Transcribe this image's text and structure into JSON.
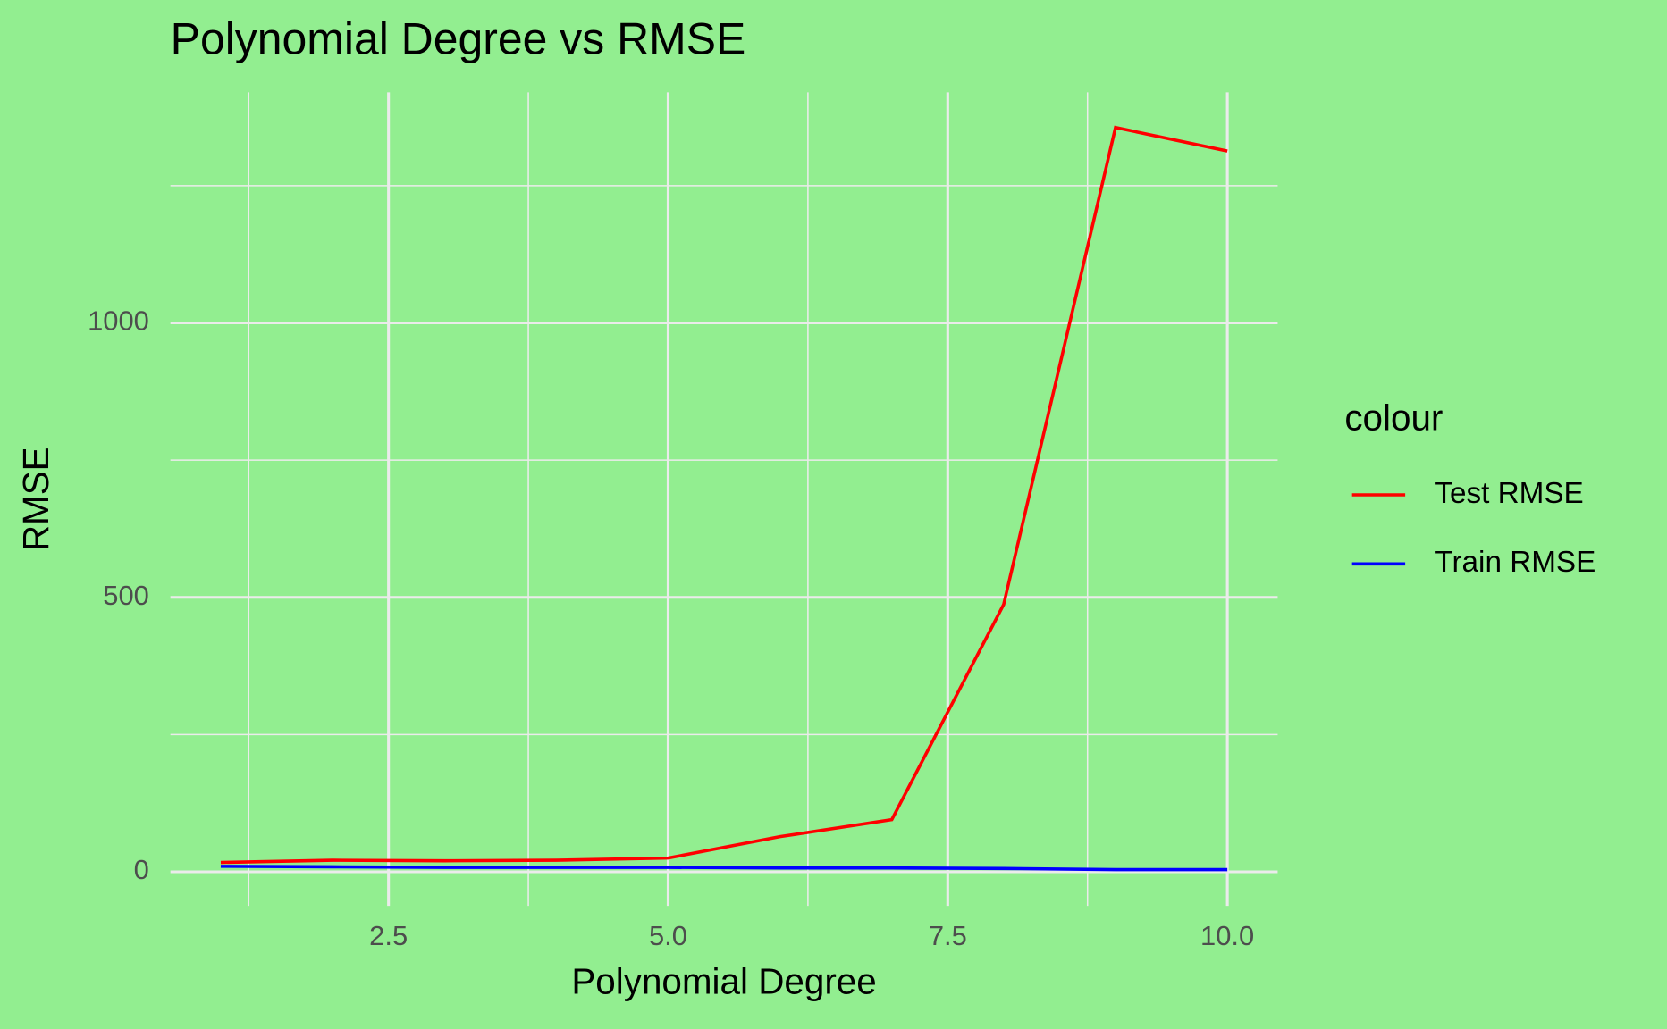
{
  "chart_data": {
    "type": "line",
    "title": "Polynomial Degree vs RMSE",
    "x_label": "Polynomial Degree",
    "y_label": "RMSE",
    "legend_title": "colour",
    "legend_position": "right",
    "background": "#92ee90",
    "grid": true,
    "x": [
      1,
      2,
      3,
      4,
      5,
      6,
      7,
      8,
      9,
      10
    ],
    "series": [
      {
        "name": "Test RMSE",
        "color": "#ff0000",
        "values": [
          17,
          21,
          20,
          21,
          25,
          64,
          95,
          487,
          1356,
          1313
        ]
      },
      {
        "name": "Train RMSE",
        "color": "#0000ff",
        "values": [
          10,
          9,
          8,
          8,
          8,
          7,
          7,
          6,
          4,
          4
        ]
      }
    ],
    "xlim": [
      0.55,
      10.45
    ],
    "ylim": [
      -62,
      1420
    ],
    "xticks": [
      {
        "value": 2.5,
        "label": "2.5"
      },
      {
        "value": 5,
        "label": "5.0"
      },
      {
        "value": 7.5,
        "label": "7.5"
      },
      {
        "value": 10,
        "label": "10.0"
      }
    ],
    "yticks": [
      0,
      500,
      1000
    ],
    "xminor": [
      1.25,
      3.75,
      6.25,
      8.75
    ],
    "yminor": [
      250,
      750,
      1250
    ]
  }
}
